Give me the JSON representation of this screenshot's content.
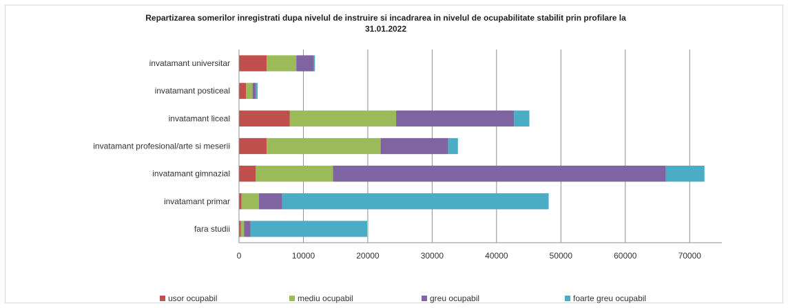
{
  "chart_data": {
    "type": "bar",
    "orientation": "horizontal",
    "stacked": true,
    "title_line1": "Repartizarea somerilor inregistrati dupa  nivelul de instruire si incadrarea in nivelul de ocupabilitate stabilit prin profilare la",
    "title_line2": "31.01.2022",
    "categories": [
      "invatamant universitar",
      "invatamant posticeal",
      "invatamant liceal",
      "invatamant profesional/arte si meserii",
      "invatamant gimnazial",
      "invatamant primar",
      "fara studii"
    ],
    "series": [
      {
        "name": "usor ocupabil",
        "color": "#c0504d",
        "values": [
          4300,
          1100,
          7900,
          4300,
          2600,
          400,
          300
        ]
      },
      {
        "name": "mediu ocupabil",
        "color": "#9bbb59",
        "values": [
          4600,
          1000,
          16500,
          17700,
          12000,
          2700,
          500
        ]
      },
      {
        "name": "greu ocupabil",
        "color": "#8064a2",
        "values": [
          2700,
          500,
          18300,
          10500,
          51700,
          3600,
          1000
        ]
      },
      {
        "name": "foarte greu ocupabil",
        "color": "#4bacc6",
        "values": [
          200,
          300,
          2400,
          1500,
          6000,
          41400,
          18100
        ]
      }
    ],
    "xlim": [
      0,
      75000
    ],
    "xticks": [
      0,
      10000,
      20000,
      30000,
      40000,
      50000,
      60000,
      70000
    ],
    "grid": true,
    "legend_position": "bottom"
  }
}
